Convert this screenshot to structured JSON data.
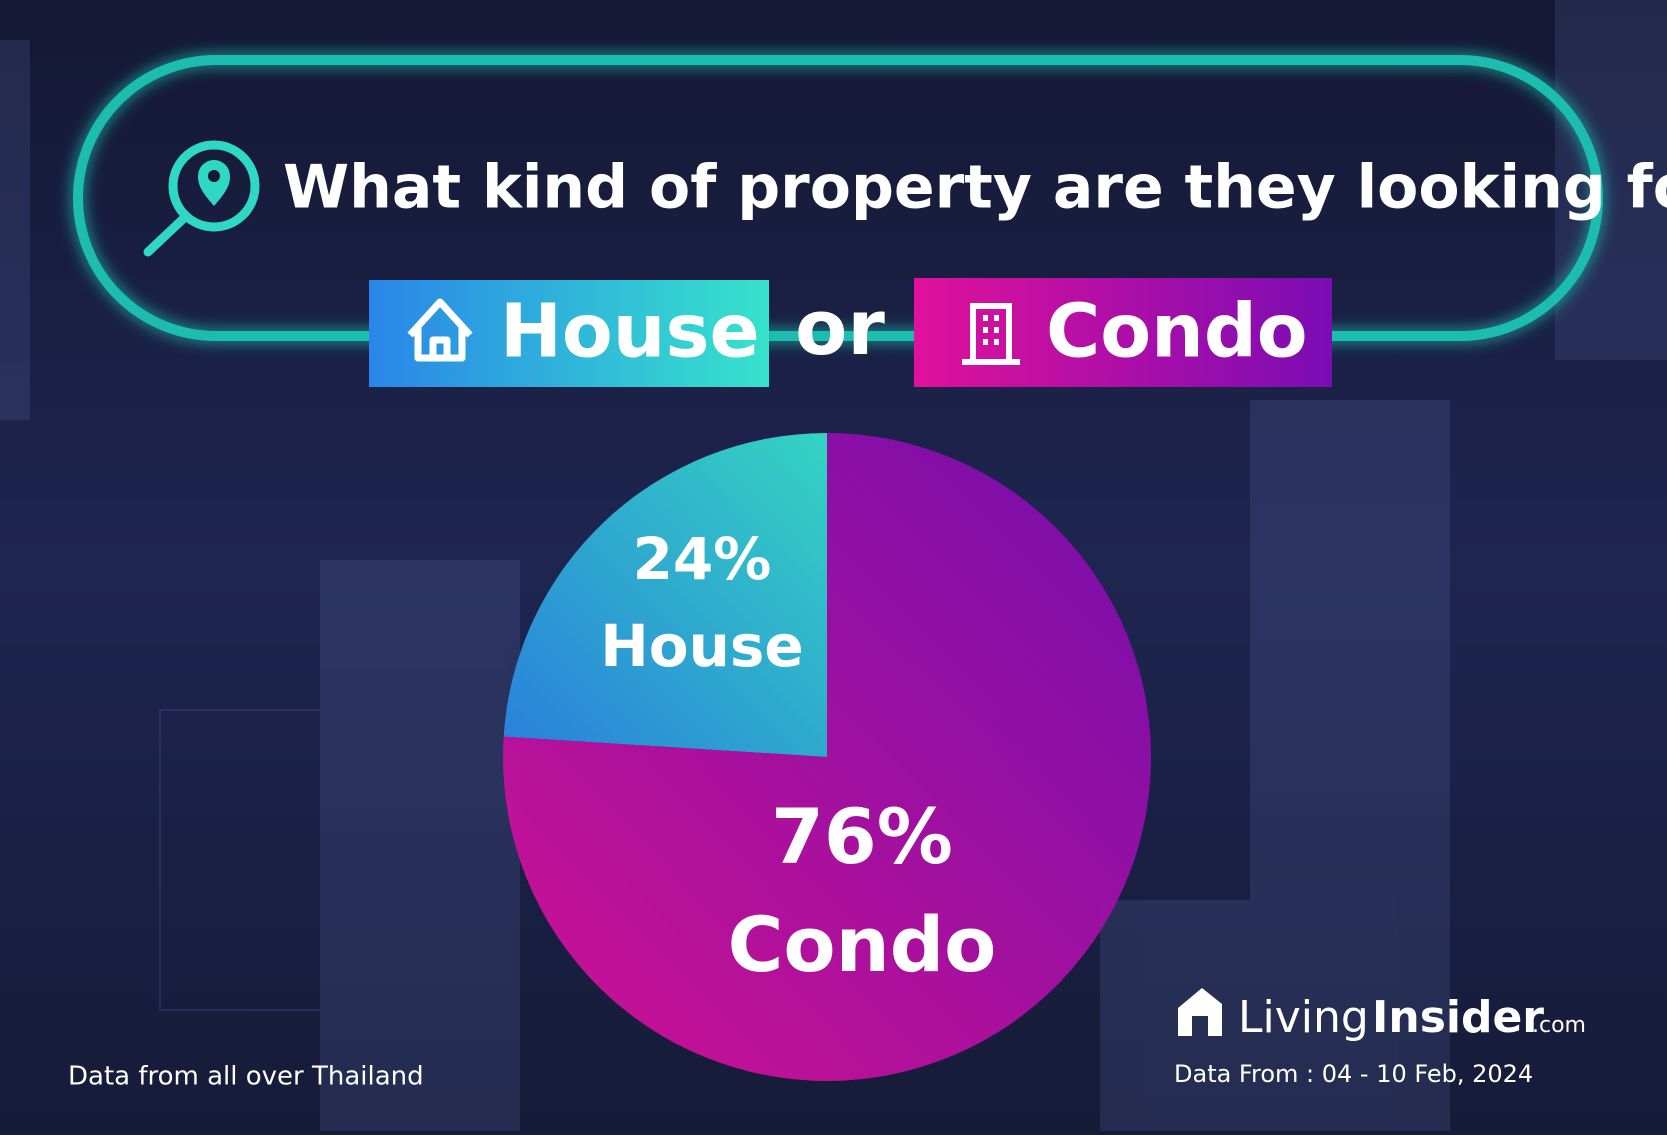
{
  "header": {
    "title": "What kind of property are they looking for?",
    "connector": "or"
  },
  "chart_data": {
    "type": "pie",
    "categories": [
      "House",
      "Condo"
    ],
    "values": [
      24,
      76
    ],
    "value_labels": [
      "24%",
      "76%"
    ],
    "gradients": [
      [
        "#2a86e8",
        "#36e3cc"
      ],
      [
        "#e0119a",
        "#7a0cb4"
      ]
    ]
  },
  "footer": {
    "note": "Data from all over Thailand",
    "date_range": "Data From : 04 - 10 Feb, 2024",
    "logo": {
      "part1": "Living",
      "part2": "Insider",
      "suffix": ".com"
    }
  }
}
